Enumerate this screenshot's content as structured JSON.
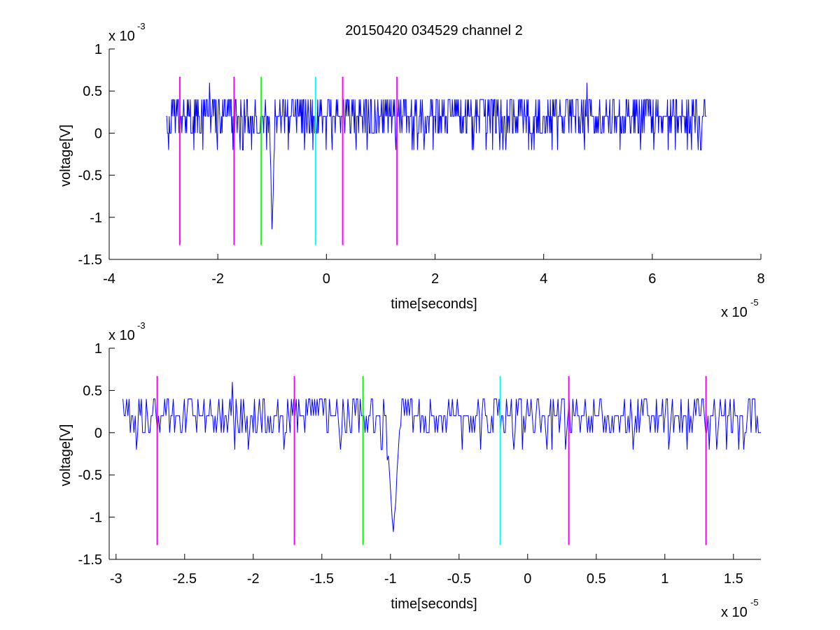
{
  "figure": {
    "title": "20150420 034529 channel 2"
  },
  "chart_data": [
    {
      "type": "line",
      "title": "20150420 034529 channel 2",
      "xlabel": "time[seconds]",
      "ylabel": "voltage[V]",
      "x_exponent": "x 10",
      "x_exponent_power": "-5",
      "y_exponent": "x 10",
      "y_exponent_power": "-3",
      "xlim": [
        -4,
        8
      ],
      "ylim": [
        -1.5,
        1
      ],
      "xticks": [
        -4,
        -2,
        0,
        2,
        4,
        6,
        8
      ],
      "xtick_labels": [
        "-4",
        "-2",
        "0",
        "2",
        "4",
        "6",
        "8"
      ],
      "yticks": [
        -1.5,
        -1,
        -0.5,
        0,
        0.5,
        1
      ],
      "ytick_labels": [
        "-1.5",
        "-1",
        "-0.5",
        "0",
        "0.5",
        "1"
      ],
      "grid": false,
      "signal": {
        "color": "#0000ff",
        "x_start": -2.95,
        "x_end": 7.0,
        "quant_step": 0.2,
        "baseline": 0.2,
        "dips": [
          {
            "x": -1.0,
            "y": -1.2,
            "width": 0.05
          }
        ],
        "spikes": [
          {
            "x": -2.15,
            "y": 0.6
          },
          {
            "x": 4.8,
            "y": 0.6
          }
        ]
      },
      "markers": [
        {
          "x": -2.7,
          "y_top": 0.67,
          "y_bottom": -1.33,
          "color": "#ff00ff"
        },
        {
          "x": -1.7,
          "y_top": 0.67,
          "y_bottom": -1.33,
          "color": "#ff00ff"
        },
        {
          "x": -1.2,
          "y_top": 0.67,
          "y_bottom": -1.33,
          "color": "#00ff00"
        },
        {
          "x": -0.2,
          "y_top": 0.67,
          "y_bottom": -1.33,
          "color": "#00ffff"
        },
        {
          "x": 0.3,
          "y_top": 0.67,
          "y_bottom": -1.33,
          "color": "#ff00ff"
        },
        {
          "x": 1.3,
          "y_top": 0.67,
          "y_bottom": -1.33,
          "color": "#ff00ff"
        }
      ]
    },
    {
      "type": "line",
      "title": "",
      "xlabel": "time[seconds]",
      "ylabel": "voltage[V]",
      "x_exponent": "x 10",
      "x_exponent_power": "-5",
      "y_exponent": "x 10",
      "y_exponent_power": "-3",
      "xlim": [
        -3.05,
        1.7
      ],
      "ylim": [
        -1.5,
        1
      ],
      "xticks": [
        -3,
        -2.5,
        -2,
        -1.5,
        -1,
        -0.5,
        0,
        0.5,
        1,
        1.5
      ],
      "xtick_labels": [
        "-3",
        "-2.5",
        "-2",
        "-1.5",
        "-1",
        "-0.5",
        "0",
        "0.5",
        "1",
        "1.5"
      ],
      "yticks": [
        -1.5,
        -1,
        -0.5,
        0,
        0.5,
        1
      ],
      "ytick_labels": [
        "-1.5",
        "-1",
        "-0.5",
        "0",
        "0.5",
        "1"
      ],
      "grid": false,
      "signal": {
        "color": "#0000ff",
        "x_start": -2.95,
        "x_end": 1.7,
        "quant_step": 0.2,
        "baseline": 0.2,
        "dips": [
          {
            "x": -0.98,
            "y": -1.2,
            "width": 0.06
          }
        ],
        "spikes": [
          {
            "x": -2.15,
            "y": 0.6
          }
        ]
      },
      "markers": [
        {
          "x": -2.7,
          "y_top": 0.67,
          "y_bottom": -1.33,
          "color": "#ff00ff"
        },
        {
          "x": -1.7,
          "y_top": 0.67,
          "y_bottom": -1.33,
          "color": "#ff00ff"
        },
        {
          "x": -1.2,
          "y_top": 0.67,
          "y_bottom": -1.33,
          "color": "#00ff00"
        },
        {
          "x": -0.2,
          "y_top": 0.67,
          "y_bottom": -1.33,
          "color": "#00ffff"
        },
        {
          "x": 0.3,
          "y_top": 0.67,
          "y_bottom": -1.33,
          "color": "#ff00ff"
        },
        {
          "x": 1.3,
          "y_top": 0.67,
          "y_bottom": -1.33,
          "color": "#ff00ff"
        }
      ]
    }
  ]
}
